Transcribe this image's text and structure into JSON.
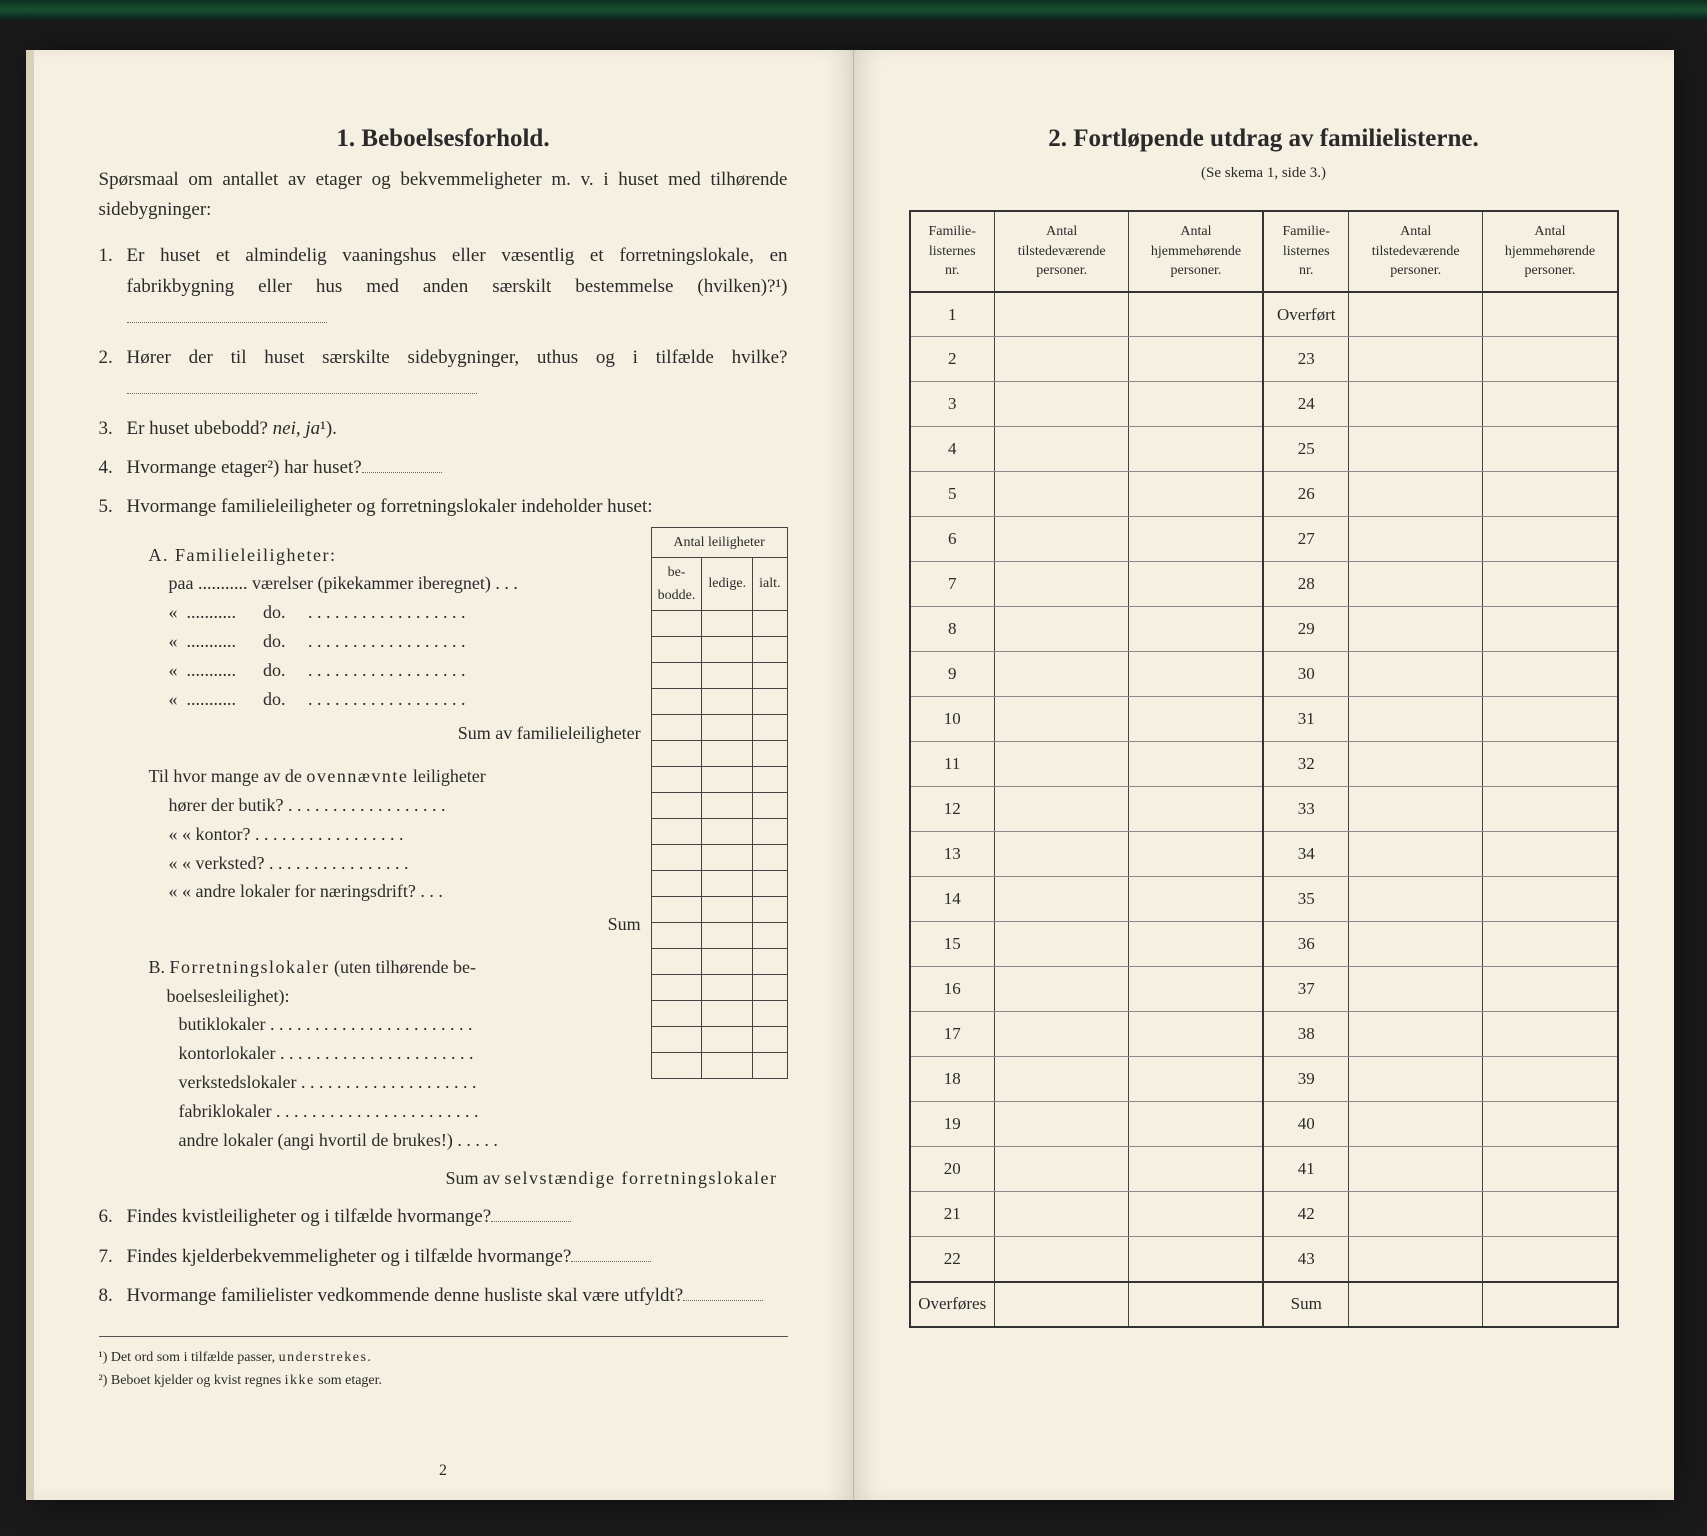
{
  "left_page": {
    "title": "1.   Beboelsesforhold.",
    "intro": "Spørsmaal om antallet av etager og bekvemmeligheter m. v. i huset med tilhørende sidebygninger:",
    "items": {
      "1": "Er huset et almindelig vaaningshus eller væsentlig et forretningslokale, en fabrikbygning eller hus med anden særskilt bestemmelse (hvilken)?¹)",
      "2": "Hører der til huset særskilte sidebygninger, uthus og i tilfælde hvilke?",
      "3_pre": "Er huset ubebodd?",
      "3_ital": "nei, ja",
      "3_sup": "¹).",
      "4": "Hvormange etager²) har huset?",
      "5": "Hvormange familieleiligheter og forretningslokaler indeholder huset:",
      "6": "Findes kvistleiligheter og i tilfælde hvormange?",
      "7": "Findes kjelderbekvemmeligheter og i tilfælde hvormange?",
      "8": "Hvormange familielister vedkommende denne husliste skal være utfyldt?"
    },
    "mini_table": {
      "header": "Antal leiligheter",
      "col1": "be-bodde.",
      "col2": "ledige.",
      "col3": "ialt."
    },
    "section_a": {
      "title": "A. Familieleiligheter:",
      "row1": "paa ........... værelser (pikekammer iberegnet) . . .",
      "do": "do.",
      "sum": "Sum av familieleiligheter",
      "q_intro": "Til hvor mange av de ovennævnte leiligheter",
      "q1": "hører der butik? . . . . . . . . . . . . . . . . . .",
      "q2": "«     «   kontor?  . . . . . . . . . . . . . . . . .",
      "q3": "«     «   verksted? . . . . . . . . . . . . . . . .",
      "q4": "«     «   andre lokaler for næringsdrift?  . . .",
      "sum2": "Sum"
    },
    "section_b": {
      "title": "B. Forretningslokaler (uten tilhørende beboelsesleilighet):",
      "r1": "butiklokaler . . . . . . . . . . . . . . . . . . . . . . .",
      "r2": "kontorlokaler . . . . . . . . . . . . . . . . . . . . . .",
      "r3": "verkstedslokaler . . . . . . . . . . . . . . . . . . . .",
      "r4": "fabriklokaler . . . . . . . . . . . . . . . . . . . . . . .",
      "r5": "andre lokaler (angi hvortil de brukes!) . . . . .",
      "sum": "Sum av selvstændige forretningslokaler"
    },
    "footnotes": {
      "f1": "¹) Det ord som i tilfælde passer, understrekes.",
      "f2": "²) Beboet kjelder og kvist regnes ikke som etager."
    },
    "page_num": "2"
  },
  "right_page": {
    "title": "2.   Fortløpende utdrag av familielisterne.",
    "subtitle": "(Se skema 1, side 3.)",
    "headers": {
      "c1": "Familie-listernes nr.",
      "c2": "Antal tilstedeværende personer.",
      "c3": "Antal hjemmehørende personer.",
      "c4": "Familie-listernes nr.",
      "c5": "Antal tilstedeværende personer.",
      "c6": "Antal hjemmehørende personer."
    },
    "left_col": [
      "1",
      "2",
      "3",
      "4",
      "5",
      "6",
      "7",
      "8",
      "9",
      "10",
      "11",
      "12",
      "13",
      "14",
      "15",
      "16",
      "17",
      "18",
      "19",
      "20",
      "21",
      "22",
      "Overføres"
    ],
    "right_col": [
      "Overført",
      "23",
      "24",
      "25",
      "26",
      "27",
      "28",
      "29",
      "30",
      "31",
      "32",
      "33",
      "34",
      "35",
      "36",
      "37",
      "38",
      "39",
      "40",
      "41",
      "42",
      "43",
      "Sum"
    ]
  },
  "colors": {
    "paper": "#f5f0e1",
    "ink": "#2a2a2a",
    "border": "#444444"
  }
}
